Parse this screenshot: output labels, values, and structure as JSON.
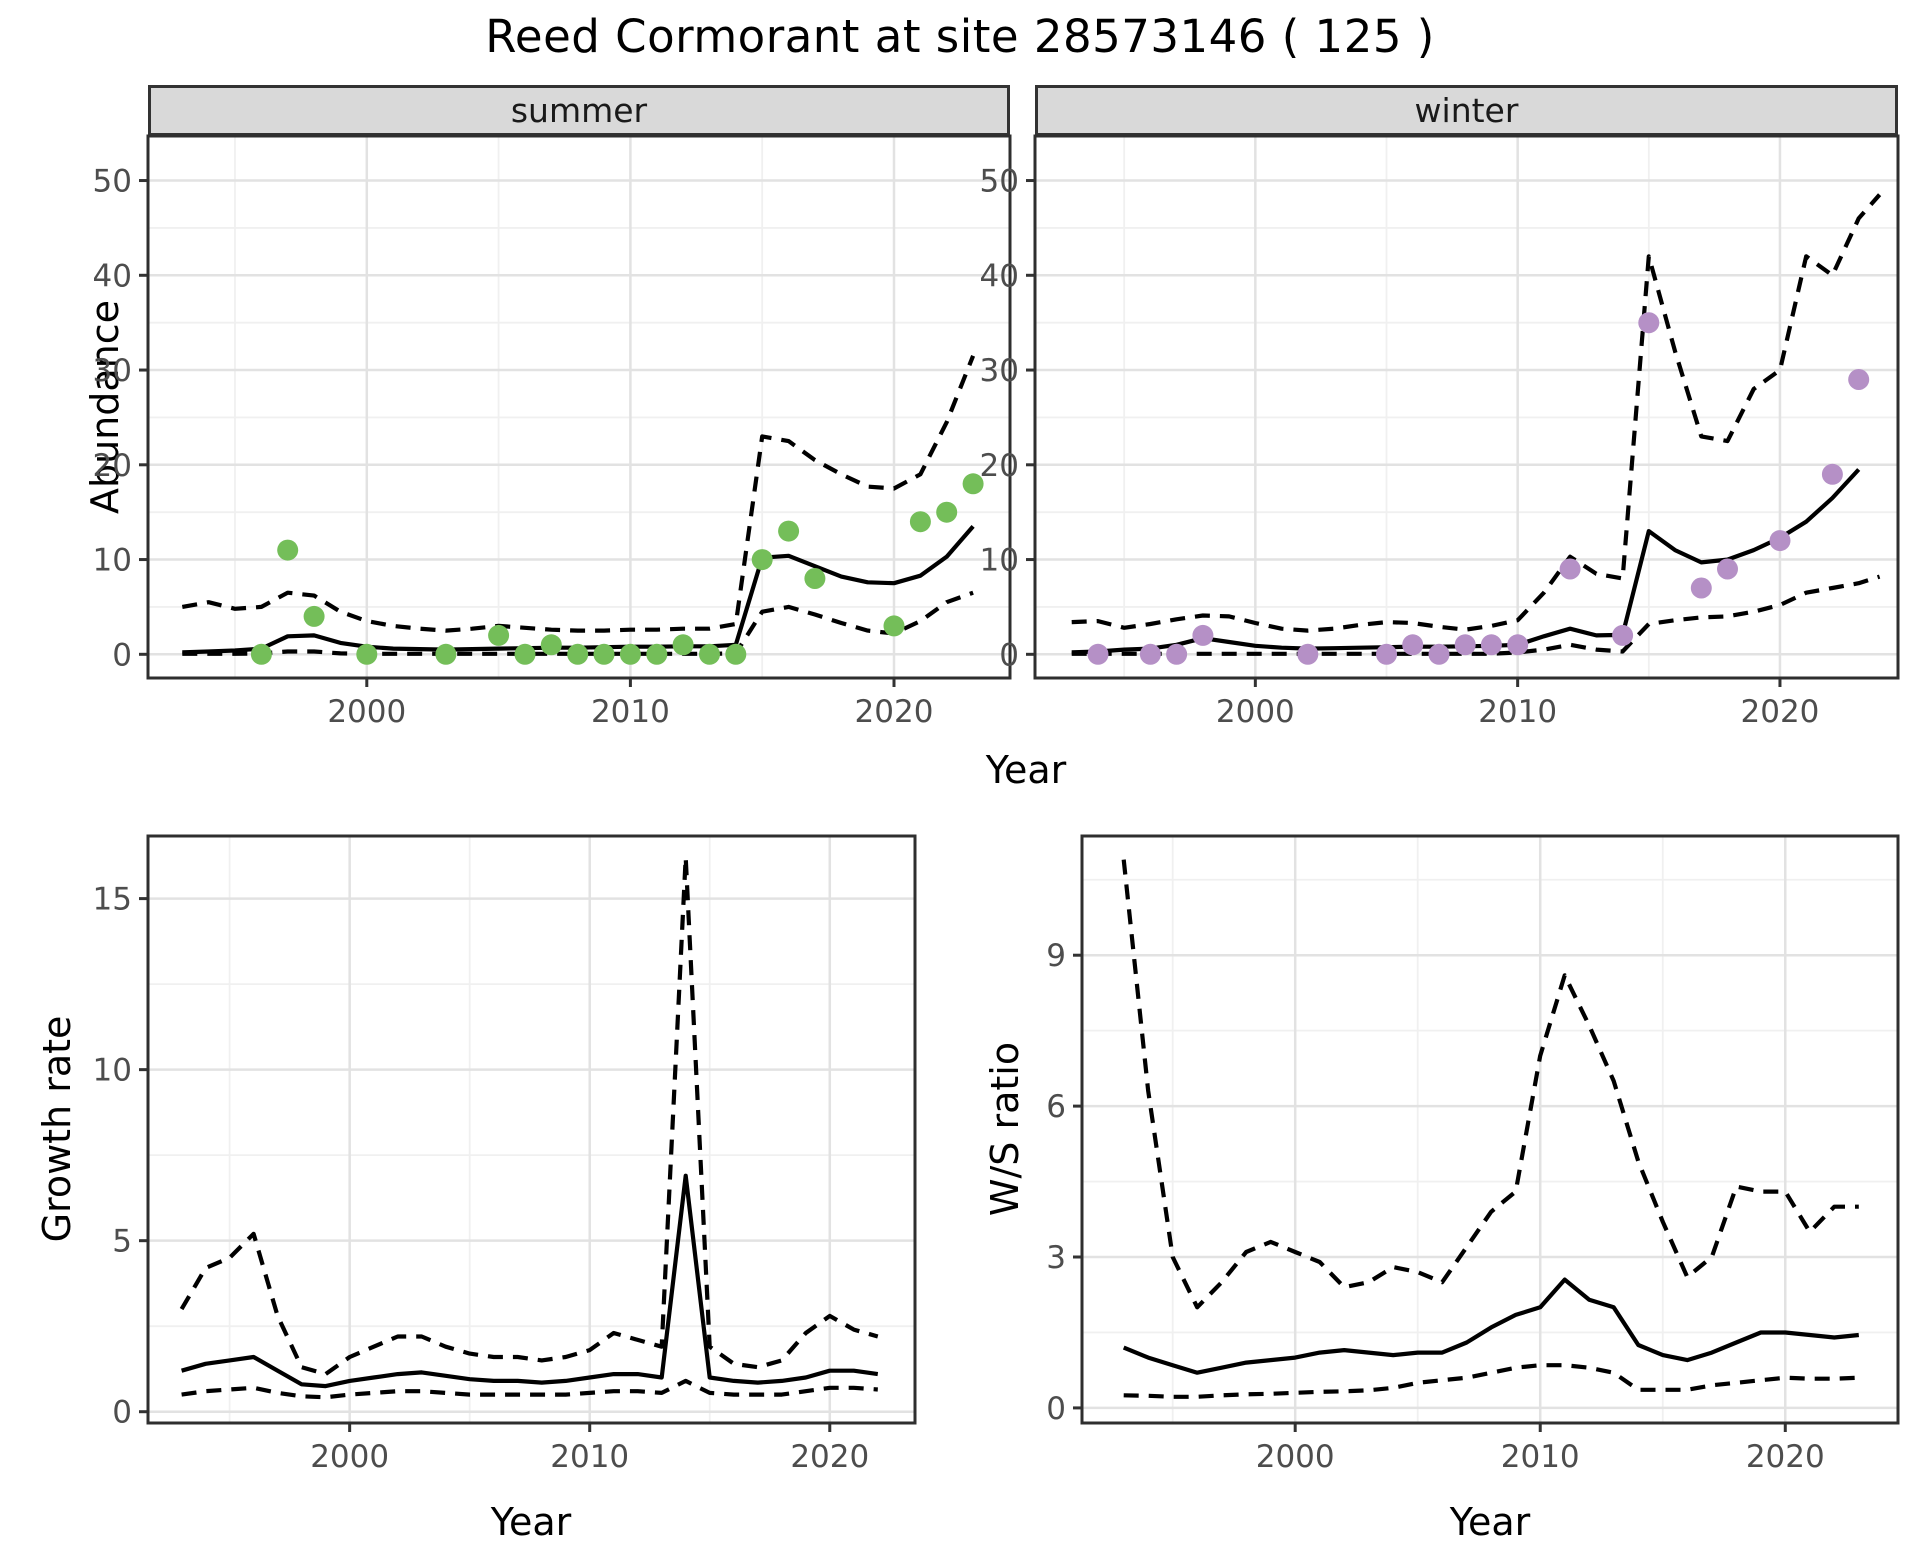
{
  "title": "Reed Cormorant at site 28573146 ( 125 )",
  "facets": {
    "summer": "summer",
    "winter": "winter"
  },
  "axis_labels": {
    "abundance": "Abundance",
    "growth": "Growth rate",
    "ws": "W/S ratio",
    "year_top": "Year",
    "year_bottom_left": "Year",
    "year_bottom_right": "Year"
  },
  "colors": {
    "summer_points": "#74BE59",
    "winter_points": "#B590C6",
    "line": "#000000",
    "strip_bg": "#D9D9D9",
    "panel_bg": "#FFFFFF",
    "panel_border": "#2F2F2F",
    "grid_major": "#E2E2E2",
    "grid_minor": "#F0F0F0",
    "tick_text": "#4D4D4D",
    "tick_mark": "#333333"
  },
  "chart_data": [
    {
      "id": "abundance-summer",
      "type": "line",
      "facet": "summer",
      "ylabel": "Abundance",
      "xlabel": "Year",
      "grid": true,
      "legend": "none",
      "xlim": [
        1991.7,
        2024.4
      ],
      "ylim": [
        -2.5,
        54.7
      ],
      "x_ticks": [
        2000,
        2010,
        2020
      ],
      "x_minor": [
        1995,
        2005,
        2015
      ],
      "y_ticks": [
        0,
        10,
        20,
        30,
        40,
        50
      ],
      "y_minor": [
        5,
        15,
        25,
        35,
        45
      ],
      "points": {
        "color_key": "summer_points",
        "x": [
          1996,
          1997,
          1998,
          2000,
          2003,
          2005,
          2006,
          2007,
          2008,
          2009,
          2010,
          2011,
          2012,
          2013,
          2014,
          2015,
          2016,
          2017,
          2020,
          2021,
          2022,
          2023
        ],
        "y": [
          0,
          11,
          4,
          0,
          0,
          2,
          0,
          1,
          0,
          0,
          0,
          0,
          1,
          0,
          0,
          10,
          13,
          8,
          3,
          14,
          15,
          18
        ]
      },
      "series": [
        {
          "name": "upper_ci",
          "style": "dashed",
          "x": [
            1993,
            1994,
            1995,
            1996,
            1997,
            1998,
            1999,
            2000,
            2001,
            2002,
            2003,
            2004,
            2005,
            2006,
            2007,
            2008,
            2009,
            2010,
            2011,
            2012,
            2013,
            2014,
            2015,
            2016,
            2017,
            2018,
            2019,
            2020,
            2021,
            2022,
            2023
          ],
          "y": [
            5.0,
            5.5,
            4.8,
            5.0,
            6.5,
            6.2,
            4.5,
            3.5,
            3.0,
            2.7,
            2.5,
            2.7,
            3.0,
            2.8,
            2.6,
            2.5,
            2.5,
            2.6,
            2.6,
            2.7,
            2.7,
            3.2,
            23.0,
            22.5,
            20.5,
            19.0,
            17.7,
            17.5,
            19.0,
            24.5,
            31.5
          ]
        },
        {
          "name": "lower_ci",
          "style": "dashed",
          "x": [
            1993,
            1994,
            1995,
            1996,
            1997,
            1998,
            1999,
            2000,
            2001,
            2002,
            2003,
            2004,
            2005,
            2006,
            2007,
            2008,
            2009,
            2010,
            2011,
            2012,
            2013,
            2014,
            2015,
            2016,
            2017,
            2018,
            2019,
            2020,
            2021,
            2022,
            2023
          ],
          "y": [
            0.05,
            0.05,
            0.05,
            0.1,
            0.3,
            0.3,
            0.1,
            0.05,
            0.05,
            0.05,
            0.05,
            0.05,
            0.05,
            0.05,
            0.05,
            0.05,
            0.05,
            0.05,
            0.05,
            0.05,
            0.05,
            0.1,
            4.5,
            5.0,
            4.2,
            3.3,
            2.5,
            2.2,
            3.5,
            5.5,
            6.5
          ]
        },
        {
          "name": "fit",
          "style": "solid",
          "x": [
            1993,
            1994,
            1995,
            1996,
            1997,
            1998,
            1999,
            2000,
            2001,
            2002,
            2003,
            2004,
            2005,
            2006,
            2007,
            2008,
            2009,
            2010,
            2011,
            2012,
            2013,
            2014,
            2015,
            2016,
            2017,
            2018,
            2019,
            2020,
            2021,
            2022,
            2023
          ],
          "y": [
            0.2,
            0.3,
            0.4,
            0.6,
            1.9,
            2.0,
            1.2,
            0.8,
            0.6,
            0.55,
            0.5,
            0.55,
            0.6,
            0.65,
            0.7,
            0.7,
            0.75,
            0.8,
            0.8,
            0.85,
            0.85,
            1.0,
            10.2,
            10.4,
            9.3,
            8.2,
            7.6,
            7.5,
            8.3,
            10.3,
            13.5
          ]
        }
      ]
    },
    {
      "id": "abundance-winter",
      "type": "line",
      "facet": "winter",
      "ylabel": "Abundance",
      "xlabel": "Year",
      "grid": true,
      "legend": "none",
      "xlim": [
        1991.6,
        2024.5
      ],
      "ylim": [
        -2.5,
        54.7
      ],
      "x_ticks": [
        2000,
        2010,
        2020
      ],
      "x_minor": [
        1995,
        2005,
        2015
      ],
      "y_ticks": [
        0,
        10,
        20,
        30,
        40,
        50
      ],
      "y_minor": [
        5,
        15,
        25,
        35,
        45
      ],
      "points": {
        "color_key": "winter_points",
        "x": [
          1994,
          1996,
          1997,
          1998,
          2002,
          2005,
          2006,
          2007,
          2008,
          2009,
          2010,
          2012,
          2014,
          2015,
          2017,
          2018,
          2020,
          2022,
          2023
        ],
        "y": [
          0,
          0,
          0,
          2,
          0,
          0,
          1,
          0,
          1,
          1,
          1,
          9,
          2,
          35,
          7,
          9,
          12,
          19,
          29
        ]
      },
      "series": [
        {
          "name": "upper_ci",
          "style": "dashed",
          "x": [
            1993,
            1994,
            1995,
            1996,
            1997,
            1998,
            1999,
            2000,
            2001,
            2002,
            2003,
            2004,
            2005,
            2006,
            2007,
            2008,
            2009,
            2010,
            2011,
            2012,
            2013,
            2014,
            2015,
            2016,
            2017,
            2018,
            2019,
            2020,
            2021,
            2022,
            2023,
            2023.8
          ],
          "y": [
            3.4,
            3.5,
            2.8,
            3.2,
            3.7,
            4.1,
            4.0,
            3.3,
            2.7,
            2.5,
            2.7,
            3.1,
            3.4,
            3.3,
            2.9,
            2.6,
            3.0,
            3.6,
            6.5,
            10.3,
            8.5,
            8.0,
            42.0,
            32.0,
            23.0,
            22.5,
            28.0,
            30.0,
            42.0,
            40.0,
            46.0,
            48.5
          ]
        },
        {
          "name": "lower_ci",
          "style": "dashed",
          "x": [
            1993,
            1994,
            1995,
            1996,
            1997,
            1998,
            1999,
            2000,
            2001,
            2002,
            2003,
            2004,
            2005,
            2006,
            2007,
            2008,
            2009,
            2010,
            2011,
            2012,
            2013,
            2014,
            2015,
            2016,
            2017,
            2018,
            2019,
            2020,
            2021,
            2022,
            2023,
            2023.8
          ],
          "y": [
            0.05,
            0.05,
            0.05,
            0.05,
            0.05,
            0.05,
            0.05,
            0.05,
            0.05,
            0.05,
            0.05,
            0.05,
            0.05,
            0.05,
            0.05,
            0.05,
            0.05,
            0.2,
            0.5,
            1.0,
            0.5,
            0.3,
            3.2,
            3.6,
            3.9,
            4.0,
            4.5,
            5.2,
            6.5,
            7.0,
            7.5,
            8.2
          ]
        },
        {
          "name": "fit",
          "style": "solid",
          "x": [
            1993,
            1994,
            1995,
            1996,
            1997,
            1998,
            1999,
            2000,
            2001,
            2002,
            2003,
            2004,
            2005,
            2006,
            2007,
            2008,
            2009,
            2010,
            2011,
            2012,
            2013,
            2014,
            2015,
            2016,
            2017,
            2018,
            2019,
            2020,
            2021,
            2022,
            2023
          ],
          "y": [
            0.2,
            0.3,
            0.5,
            0.6,
            1.0,
            1.7,
            1.3,
            0.9,
            0.7,
            0.6,
            0.65,
            0.7,
            0.75,
            0.8,
            0.8,
            0.85,
            0.9,
            1.0,
            1.9,
            2.7,
            2.0,
            2.05,
            13.0,
            11.0,
            9.7,
            10.0,
            11.0,
            12.3,
            14.0,
            16.5,
            19.5
          ]
        }
      ]
    },
    {
      "id": "growth-rate",
      "type": "line",
      "facet": null,
      "ylabel": "Growth rate",
      "xlabel": "Year",
      "grid": true,
      "legend": "none",
      "xlim": [
        1991.6,
        2023.55
      ],
      "ylim": [
        -0.33,
        16.83
      ],
      "x_ticks": [
        2000,
        2010,
        2020
      ],
      "x_minor": [
        1995,
        2005,
        2015
      ],
      "y_ticks": [
        0,
        5,
        10,
        15
      ],
      "y_minor": [
        2.5,
        7.5,
        12.5
      ],
      "points": null,
      "series": [
        {
          "name": "upper_ci",
          "style": "dashed",
          "x": [
            1993,
            1994,
            1995,
            1996,
            1997,
            1998,
            1999,
            2000,
            2001,
            2002,
            2003,
            2004,
            2005,
            2006,
            2007,
            2008,
            2009,
            2010,
            2011,
            2012,
            2013,
            2014,
            2015,
            2016,
            2017,
            2018,
            2019,
            2020,
            2021,
            2022
          ],
          "y": [
            3.0,
            4.2,
            4.5,
            5.2,
            2.8,
            1.3,
            1.1,
            1.6,
            1.9,
            2.2,
            2.2,
            1.9,
            1.7,
            1.6,
            1.6,
            1.5,
            1.6,
            1.8,
            2.3,
            2.1,
            1.9,
            16.2,
            1.9,
            1.4,
            1.3,
            1.5,
            2.3,
            2.8,
            2.4,
            2.2
          ]
        },
        {
          "name": "lower_ci",
          "style": "dashed",
          "x": [
            1993,
            1994,
            1995,
            1996,
            1997,
            1998,
            1999,
            2000,
            2001,
            2002,
            2003,
            2004,
            2005,
            2006,
            2007,
            2008,
            2009,
            2010,
            2011,
            2012,
            2013,
            2014,
            2015,
            2016,
            2017,
            2018,
            2019,
            2020,
            2021,
            2022
          ],
          "y": [
            0.5,
            0.6,
            0.65,
            0.7,
            0.55,
            0.45,
            0.42,
            0.5,
            0.55,
            0.6,
            0.6,
            0.55,
            0.5,
            0.5,
            0.5,
            0.5,
            0.5,
            0.55,
            0.6,
            0.6,
            0.55,
            0.9,
            0.55,
            0.5,
            0.5,
            0.5,
            0.6,
            0.7,
            0.7,
            0.65
          ]
        },
        {
          "name": "fit",
          "style": "solid",
          "x": [
            1993,
            1994,
            1995,
            1996,
            1997,
            1998,
            1999,
            2000,
            2001,
            2002,
            2003,
            2004,
            2005,
            2006,
            2007,
            2008,
            2009,
            2010,
            2011,
            2012,
            2013,
            2014,
            2015,
            2016,
            2017,
            2018,
            2019,
            2020,
            2021,
            2022
          ],
          "y": [
            1.2,
            1.4,
            1.5,
            1.6,
            1.2,
            0.8,
            0.75,
            0.9,
            1.0,
            1.1,
            1.15,
            1.05,
            0.95,
            0.9,
            0.9,
            0.85,
            0.9,
            1.0,
            1.1,
            1.1,
            1.0,
            6.9,
            1.0,
            0.9,
            0.85,
            0.9,
            1.0,
            1.2,
            1.2,
            1.1
          ]
        }
      ]
    },
    {
      "id": "ws-ratio",
      "type": "line",
      "facet": null,
      "ylabel": "W/S ratio",
      "xlabel": "Year",
      "grid": true,
      "legend": "none",
      "xlim": [
        1991.3,
        2024.6
      ],
      "ylim": [
        -0.3,
        11.37
      ],
      "x_ticks": [
        2000,
        2010,
        2020
      ],
      "x_minor": [
        1995,
        2005,
        2015
      ],
      "y_ticks": [
        0,
        3,
        6,
        9
      ],
      "y_minor": [
        1.5,
        4.5,
        7.5,
        10.5
      ],
      "points": null,
      "series": [
        {
          "name": "upper_ci",
          "style": "dashed",
          "x": [
            1993,
            1994,
            1995,
            1996,
            1997,
            1998,
            1999,
            2000,
            2001,
            2002,
            2003,
            2004,
            2005,
            2006,
            2007,
            2008,
            2009,
            2010,
            2011,
            2012,
            2013,
            2014,
            2015,
            2016,
            2017,
            2018,
            2019,
            2020,
            2021,
            2022,
            2023
          ],
          "y": [
            10.9,
            6.3,
            3.0,
            2.0,
            2.5,
            3.1,
            3.3,
            3.1,
            2.9,
            2.4,
            2.5,
            2.8,
            2.7,
            2.5,
            3.2,
            3.9,
            4.3,
            7.0,
            8.6,
            7.6,
            6.5,
            4.9,
            3.7,
            2.6,
            3.0,
            4.4,
            4.3,
            4.3,
            3.5,
            4.0,
            4.0
          ]
        },
        {
          "name": "lower_ci",
          "style": "dashed",
          "x": [
            1993,
            1994,
            1995,
            1996,
            1997,
            1998,
            1999,
            2000,
            2001,
            2002,
            2003,
            2004,
            2005,
            2006,
            2007,
            2008,
            2009,
            2010,
            2011,
            2012,
            2013,
            2014,
            2015,
            2016,
            2017,
            2018,
            2019,
            2020,
            2021,
            2022,
            2023
          ],
          "y": [
            0.25,
            0.24,
            0.22,
            0.22,
            0.25,
            0.27,
            0.28,
            0.3,
            0.32,
            0.33,
            0.35,
            0.4,
            0.5,
            0.55,
            0.6,
            0.7,
            0.8,
            0.85,
            0.85,
            0.8,
            0.7,
            0.36,
            0.36,
            0.36,
            0.45,
            0.5,
            0.55,
            0.6,
            0.58,
            0.58,
            0.6
          ]
        },
        {
          "name": "fit",
          "style": "solid",
          "x": [
            1993,
            1994,
            1995,
            1996,
            1997,
            1998,
            1999,
            2000,
            2001,
            2002,
            2003,
            2004,
            2005,
            2006,
            2007,
            2008,
            2009,
            2010,
            2011,
            2012,
            2013,
            2014,
            2015,
            2016,
            2017,
            2018,
            2019,
            2020,
            2021,
            2022,
            2023
          ],
          "y": [
            1.2,
            1.0,
            0.85,
            0.7,
            0.8,
            0.9,
            0.95,
            1.0,
            1.1,
            1.15,
            1.1,
            1.05,
            1.1,
            1.1,
            1.3,
            1.6,
            1.85,
            2.0,
            2.55,
            2.15,
            2.0,
            1.25,
            1.05,
            0.95,
            1.1,
            1.3,
            1.5,
            1.5,
            1.45,
            1.4,
            1.45
          ]
        }
      ]
    }
  ]
}
